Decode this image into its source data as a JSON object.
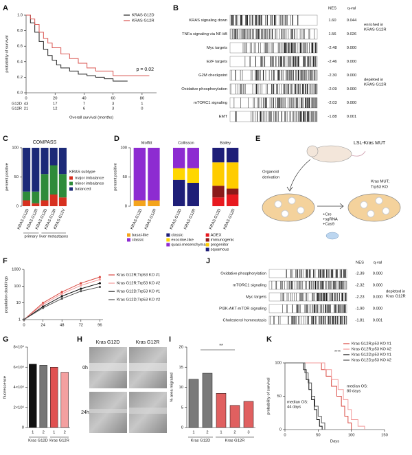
{
  "chart_data": [
    {
      "panel": "A",
      "type": "step",
      "ylabel": "probability of survival",
      "xlabel": "Overall survival (months)",
      "xlim": [
        0,
        90
      ],
      "xticks": [
        0,
        20,
        40,
        60,
        80
      ],
      "ylim": [
        0,
        1
      ],
      "yticks": [
        {
          "value": 0,
          "label": "0.0"
        },
        0.2,
        0.4,
        0.6,
        0.8,
        {
          "value": 1,
          "label": "1.0"
        }
      ],
      "series": [
        {
          "name": "KRAS G12D",
          "color": "#222222",
          "x": [
            0,
            3,
            6,
            9,
            12,
            15,
            18,
            21,
            24,
            30,
            36,
            42,
            48,
            54,
            60,
            70
          ],
          "values": [
            1,
            0.9,
            0.78,
            0.66,
            0.56,
            0.48,
            0.42,
            0.36,
            0.32,
            0.28,
            0.24,
            0.22,
            0.2,
            0.18,
            0.15,
            0.15
          ]
        },
        {
          "name": "KRAS G12R",
          "color": "#d9534f",
          "x": [
            0,
            3,
            6,
            9,
            12,
            15,
            18,
            24,
            30,
            36,
            42,
            48,
            60,
            85
          ],
          "values": [
            1,
            0.95,
            0.88,
            0.78,
            0.7,
            0.64,
            0.58,
            0.5,
            0.44,
            0.38,
            0.32,
            0.28,
            0.22,
            0.22
          ]
        }
      ],
      "annotation": "p = 0.02",
      "risk_table": [
        {
          "name": "G12D",
          "color": "#222222",
          "values": [
            "43",
            "17",
            "7",
            "3",
            "1"
          ]
        },
        {
          "name": "G12R",
          "color": "#d9534f",
          "values": [
            "21",
            "12",
            "6",
            "3",
            "0"
          ]
        }
      ]
    },
    {
      "panel": "B",
      "type": "gsea",
      "headers": [
        "NES",
        "q-val"
      ],
      "rows": [
        {
          "name": "KRAS signaling down",
          "nes": "1.60",
          "q": "0.044",
          "color": "#d9473f"
        },
        {
          "name": "TNFa signaling via NF-kB",
          "nes": "1.56",
          "q": "0.026",
          "color": "#d9473f"
        },
        {
          "name": "Myc targets",
          "nes": "-2.48",
          "q": "0.000",
          "color": "#222222"
        },
        {
          "name": "E2F targets",
          "nes": "-2.46",
          "q": "0.000",
          "color": "#222222"
        },
        {
          "name": "G2M checkpoint",
          "nes": "-2.30",
          "q": "0.000",
          "color": "#222222"
        },
        {
          "name": "Oxidative phosphorylation",
          "nes": "-2.09",
          "q": "0.000",
          "color": "#222222"
        },
        {
          "name": "mTORC1 signaling",
          "nes": "-2.03",
          "q": "0.000",
          "color": "#222222"
        },
        {
          "name": "EMT",
          "nes": "-1.88",
          "q": "0.001",
          "color": "#222222"
        }
      ],
      "annotations": [
        {
          "lines": [
            "enriched in",
            "KRAS G12R"
          ],
          "color": "#d9473f"
        },
        {
          "lines": [
            "depleted in",
            "KRAS G12R"
          ],
          "color": "#222222"
        }
      ]
    },
    {
      "panel": "C",
      "type": "stacked_bar",
      "title": "COMPASS",
      "ylabel": "percent positive",
      "ylim": [
        0,
        100
      ],
      "yticks": [
        0,
        50,
        100
      ],
      "categories": [
        "KRAS G12D",
        "KRAS G12R",
        "KRAS G12D",
        "KRAS G12R",
        "KRAS G12V"
      ],
      "category_groups": [
        {
          "label": "primary",
          "count": 2
        },
        {
          "label": "liver metastases",
          "count": 3
        }
      ],
      "legend_title": "KRAS subtype",
      "series": [
        {
          "name": "major imbalance",
          "color": "#d7301f",
          "values": [
            10,
            5,
            10,
            20,
            15
          ]
        },
        {
          "name": "minor imbalance",
          "color": "#2e8b3a",
          "values": [
            15,
            20,
            45,
            50,
            40
          ]
        },
        {
          "name": "balanced",
          "color": "#1c2a78",
          "values": [
            75,
            75,
            45,
            30,
            45
          ]
        }
      ]
    },
    {
      "panel": "D",
      "type": "stacked_bar",
      "ylabel": "percent positive",
      "ylim": [
        0,
        100
      ],
      "yticks": [
        0,
        50,
        100
      ],
      "groups": [
        {
          "title": "Moffitt",
          "categories": [
            "KRAS G12D",
            "KRAS G12R"
          ],
          "series": [
            {
              "name": "basal-like",
              "color": "#f4a41c",
              "values": [
                10,
                10
              ]
            },
            {
              "name": "classic",
              "color": "#8d2bd1",
              "values": [
                90,
                90
              ]
            }
          ]
        },
        {
          "title": "Collisson",
          "categories": [
            "KRAS G12D",
            "KRAS G12R"
          ],
          "series": [
            {
              "name": "classic",
              "color": "#1e1e78",
              "values": [
                45,
                40
              ]
            },
            {
              "name": "exocrine-like",
              "color": "#ffd700",
              "values": [
                20,
                25
              ]
            },
            {
              "name": "quasi-mesenchymal",
              "color": "#8d2bd1",
              "values": [
                35,
                35
              ]
            }
          ]
        },
        {
          "title": "Bailey",
          "categories": [
            "KRAS G12D",
            "KRAS G12R"
          ],
          "series": [
            {
              "name": "ADEX",
              "color": "#e8191f",
              "values": [
                15,
                20
              ]
            },
            {
              "name": "immunogenic",
              "color": "#8b1a1a",
              "values": [
                20,
                10
              ]
            },
            {
              "name": "progenitor",
              "color": "#ffcc00",
              "values": [
                40,
                45
              ]
            },
            {
              "name": "squamous",
              "color": "#1e1e78",
              "values": [
                25,
                25
              ]
            }
          ]
        }
      ]
    },
    {
      "panel": "F",
      "type": "line",
      "ylabel": "population doublings",
      "log_y": true,
      "x": [
        0,
        24,
        48,
        72,
        96
      ],
      "xlim": [
        0,
        100
      ],
      "xticks": [
        0,
        24,
        48,
        72,
        96
      ],
      "ylim": [
        1,
        1000
      ],
      "yticks": [
        1,
        10,
        100,
        1000
      ],
      "series": [
        {
          "name": "Kras G12R;Trp53 KO #1",
          "color": "#d9473f",
          "values": [
            1,
            10,
            45,
            150,
            350
          ]
        },
        {
          "name": "Kras G12R;Trp53 KO #2",
          "color": "#f29a9a",
          "values": [
            1,
            8,
            35,
            110,
            250
          ]
        },
        {
          "name": "Kras G12D;Trp53 KO #1",
          "color": "#111111",
          "values": [
            1,
            6,
            25,
            70,
            150
          ]
        },
        {
          "name": "Kras G12D;Trp53 KO #2",
          "color": "#555555",
          "values": [
            1,
            5,
            18,
            50,
            90
          ]
        }
      ]
    },
    {
      "panel": "J",
      "type": "gsea",
      "headers": [
        "NES",
        "q-val"
      ],
      "rows": [
        {
          "name": "Oxidative phosphorylation",
          "nes": "-2.39",
          "q": "0.000",
          "color": "#222222"
        },
        {
          "name": "mTORC1 signaling",
          "nes": "-2.32",
          "q": "0.000",
          "color": "#222222"
        },
        {
          "name": "Myc targets",
          "nes": "-2.23",
          "q": "0.000",
          "color": "#222222"
        },
        {
          "name": "PI3K-AKT-mTOR signaling",
          "nes": "-1.90",
          "q": "0.000",
          "color": "#222222"
        },
        {
          "name": "Cholesterol homeostasis",
          "nes": "-1.81",
          "q": "0.001",
          "color": "#222222"
        }
      ],
      "annotations": [
        {
          "lines": [
            "depleted in",
            "Kras G12R"
          ],
          "color": "#222222"
        }
      ]
    },
    {
      "panel": "G",
      "type": "bar",
      "ylabel": "fluorescence",
      "ylim": [
        0,
        8000000
      ],
      "yticks": [
        0,
        {
          "value": 2000000,
          "label": "2×10⁶"
        },
        {
          "value": 4000000,
          "label": "4×10⁶"
        },
        {
          "value": 6000000,
          "label": "6×10⁶"
        },
        {
          "value": 8000000,
          "label": "8×10⁶"
        }
      ],
      "categories": [
        "1",
        "2",
        "1",
        "2"
      ],
      "category_groups": [
        {
          "label": "Kras G12D",
          "count": 2
        },
        {
          "label": "Kras G12R",
          "count": 2
        }
      ],
      "values": [
        6300000,
        6200000,
        6000000,
        5500000
      ],
      "colors": [
        "#111111",
        "#777777",
        "#e05050",
        "#f4a0a0"
      ]
    },
    {
      "panel": "I",
      "type": "bar",
      "ylabel": "% area migrated",
      "ylim": [
        0,
        20
      ],
      "yticks": [
        0,
        5,
        10,
        15,
        20
      ],
      "categories": [
        "1",
        "2",
        "1",
        "2",
        "3"
      ],
      "category_groups": [
        {
          "label": "Kras G12D",
          "count": 2
        },
        {
          "label": "Kras G12R",
          "count": 3
        }
      ],
      "values": [
        12,
        13.5,
        8.5,
        5.5,
        6.5
      ],
      "colors": [
        "#7a7a7a",
        "#7a7a7a",
        "#e06060",
        "#e06060",
        "#e06060"
      ],
      "annotation": "**"
    },
    {
      "panel": "K",
      "type": "step",
      "ylabel": "probability of survival",
      "xlabel": "Days",
      "xlim": [
        0,
        150
      ],
      "xticks": [
        0,
        50,
        100,
        150
      ],
      "ylim": [
        0,
        100
      ],
      "yticks": [
        0,
        50,
        100
      ],
      "series": [
        {
          "name": "Kras G12R;p53 KO #1",
          "color": "#d9473f",
          "x": [
            0,
            55,
            62,
            70,
            78,
            85,
            90,
            95,
            100
          ],
          "values": [
            100,
            90,
            80,
            65,
            50,
            35,
            20,
            10,
            0
          ]
        },
        {
          "name": "Kras G12R;p53 KO #2",
          "color": "#f29a9a",
          "x": [
            0,
            60,
            70,
            80,
            88,
            95,
            100,
            110,
            120
          ],
          "values": [
            100,
            90,
            75,
            60,
            45,
            30,
            15,
            5,
            0
          ]
        },
        {
          "name": "Kras G12D;p53 KO #1",
          "color": "#111111",
          "x": [
            0,
            28,
            32,
            36,
            40,
            44,
            48,
            52,
            56
          ],
          "values": [
            100,
            90,
            75,
            60,
            45,
            30,
            15,
            5,
            0
          ]
        },
        {
          "name": "Kras G12D;p53 KO #2",
          "color": "#555555",
          "x": [
            0,
            30,
            35,
            40,
            45,
            50,
            55,
            60
          ],
          "values": [
            100,
            85,
            70,
            50,
            35,
            20,
            10,
            0
          ]
        }
      ],
      "annotations": [
        {
          "lines": [
            "****"
          ]
        },
        {
          "lines": [
            "median OS:",
            "44 days"
          ]
        },
        {
          "lines": [
            "median OS:",
            "80 days"
          ]
        }
      ]
    }
  ],
  "diagram": {
    "panel": "E",
    "mouse_label": "LSL-Kras MUT",
    "derivation": [
      "Organoid",
      "derivation"
    ],
    "treatment": [
      "+Cre",
      "+sgRNA",
      "+Cas9"
    ],
    "result": [
      "Kras MUT;",
      "Trp53 KO"
    ]
  },
  "images": {
    "panel": "H",
    "columns": [
      "Kras G12D",
      "Kras G12R"
    ],
    "rows": [
      "0h",
      "24h"
    ]
  }
}
